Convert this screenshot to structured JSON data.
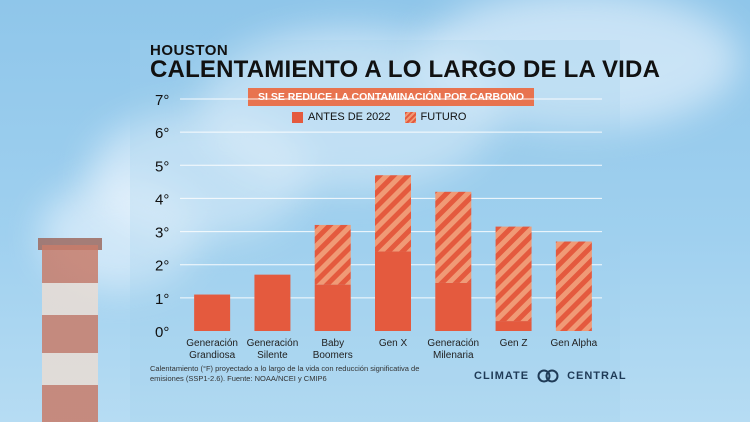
{
  "header": {
    "city": "HOUSTON",
    "title": "CALENTAMIENTO A LO LARGO DE LA VIDA",
    "banner": "SI SE REDUCE LA CONTAMINACIÓN POR CARBONO"
  },
  "legend": {
    "past_label": "ANTES DE 2022",
    "future_label": "FUTURO"
  },
  "chart_data": {
    "type": "bar",
    "stacked": true,
    "title": "CALENTAMIENTO A LO LARGO DE LA VIDA",
    "subtitle": "SI SE REDUCE LA CONTAMINACIÓN POR CARBONO",
    "categories": [
      [
        "Generación",
        "Grandiosa"
      ],
      [
        "Generación",
        "Silente"
      ],
      [
        "Baby",
        "Boomers"
      ],
      [
        "Gen X"
      ],
      [
        "Generación",
        "Milenaria"
      ],
      [
        "Gen Z"
      ],
      [
        "Gen Alpha"
      ]
    ],
    "series": [
      {
        "name": "ANTES DE 2022",
        "values": [
          1.1,
          1.7,
          1.4,
          2.4,
          1.45,
          0.3,
          0.0
        ]
      },
      {
        "name": "FUTURO",
        "values": [
          0.0,
          0.0,
          1.8,
          2.3,
          2.75,
          2.85,
          2.7
        ]
      }
    ],
    "yticks": [
      "0°",
      "1°",
      "2°",
      "3°",
      "4°",
      "5°",
      "6°",
      "7°"
    ],
    "ylim": [
      0,
      7
    ],
    "grid": true,
    "legend_position": "top-center",
    "colors": {
      "past": "#e45a3e",
      "future_light": "#f09a76",
      "grid": "#ffffff"
    }
  },
  "footer": {
    "note": "Calentamiento (°F) proyectado a lo largo de la vida con reducción significativa de emisiones (SSP1-2.6). Fuente: NOAA/NCEI y CMIP6",
    "brand_left": "CLIMATE",
    "brand_right": "CENTRAL"
  }
}
